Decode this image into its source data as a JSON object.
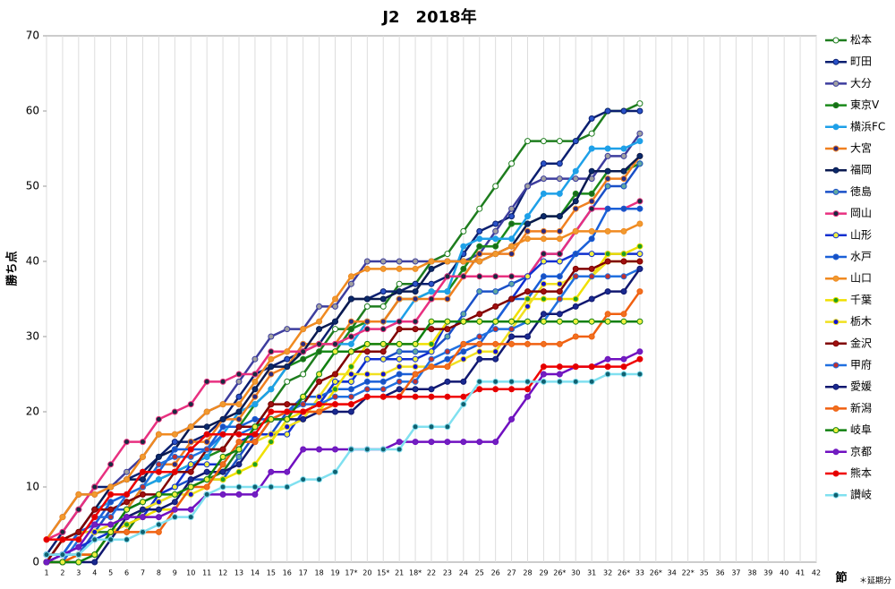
{
  "chart_data": {
    "type": "line",
    "title": "J2　2018年",
    "y_label": "勝ち点",
    "x_label": "節",
    "note": "＊延期分",
    "categories": [
      "1",
      "2",
      "3",
      "4",
      "5",
      "6",
      "7",
      "8",
      "9",
      "10",
      "11",
      "12",
      "13",
      "14",
      "15",
      "16",
      "17",
      "18",
      "19",
      "17*",
      "20",
      "15*",
      "21",
      "18*",
      "22",
      "23",
      "24",
      "25",
      "26",
      "27",
      "28",
      "29",
      "26*",
      "30",
      "31",
      "32",
      "26*",
      "33",
      "26*",
      "34",
      "22*",
      "35",
      "36",
      "37",
      "38",
      "39",
      "40",
      "41",
      "42"
    ],
    "ylim": [
      0,
      70
    ],
    "yticks": [
      0,
      10,
      20,
      30,
      40,
      50,
      60,
      70
    ],
    "grid": true,
    "series": [
      {
        "name": "松本",
        "color": "#1e7d1e",
        "marker": "#ffffff",
        "values": [
          1,
          1,
          4,
          4,
          4,
          4,
          7,
          8,
          9,
          10,
          11,
          12,
          15,
          18,
          21,
          24,
          25,
          28,
          31,
          31,
          34,
          34,
          37,
          37,
          40,
          41,
          44,
          47,
          50,
          53,
          56,
          56,
          56,
          56,
          57,
          60,
          60,
          61,
          null,
          null,
          null,
          null,
          null,
          null,
          null,
          null,
          null,
          null,
          null
        ]
      },
      {
        "name": "町田",
        "color": "#0a1f70",
        "marker": "#2a52c8",
        "values": [
          1,
          4,
          7,
          10,
          10,
          11,
          12,
          14,
          16,
          16,
          17,
          19,
          22,
          25,
          26,
          27,
          28,
          29,
          32,
          35,
          35,
          36,
          36,
          37,
          37,
          38,
          41,
          44,
          45,
          46,
          50,
          53,
          53,
          56,
          59,
          60,
          60,
          60,
          null,
          null,
          null,
          null,
          null,
          null,
          null,
          null,
          null,
          null,
          null
        ]
      },
      {
        "name": "大分",
        "color": "#3d3d9e",
        "marker": "#a0a0a0",
        "values": [
          3,
          6,
          9,
          9,
          10,
          12,
          14,
          17,
          17,
          18,
          20,
          21,
          24,
          27,
          30,
          31,
          31,
          34,
          34,
          37,
          40,
          40,
          40,
          40,
          40,
          40,
          40,
          41,
          44,
          47,
          50,
          51,
          51,
          51,
          51,
          54,
          54,
          57,
          null,
          null,
          null,
          null,
          null,
          null,
          null,
          null,
          null,
          null,
          null
        ]
      },
      {
        "name": "東京V",
        "color": "#1a8a1a",
        "marker": "#1a6a1a",
        "values": [
          0,
          1,
          1,
          1,
          4,
          7,
          10,
          11,
          12,
          13,
          14,
          15,
          18,
          21,
          23,
          26,
          27,
          28,
          28,
          31,
          32,
          32,
          35,
          35,
          36,
          36,
          39,
          42,
          42,
          45,
          45,
          46,
          46,
          49,
          49,
          52,
          52,
          53,
          null,
          null,
          null,
          null,
          null,
          null,
          null,
          null,
          null,
          null,
          null
        ]
      },
      {
        "name": "横浜FC",
        "color": "#1ea0e8",
        "marker": "#1ea0e8",
        "values": [
          0,
          1,
          4,
          7,
          8,
          9,
          10,
          11,
          12,
          13,
          14,
          17,
          20,
          21,
          23,
          26,
          29,
          29,
          29,
          29,
          32,
          32,
          32,
          35,
          36,
          36,
          42,
          43,
          43,
          43,
          46,
          49,
          49,
          52,
          55,
          55,
          55,
          56,
          null,
          null,
          null,
          null,
          null,
          null,
          null,
          null,
          null,
          null,
          null
        ]
      },
      {
        "name": "大宮",
        "color": "#f08020",
        "marker": "#2a2a80",
        "values": [
          0,
          0,
          1,
          4,
          7,
          7,
          10,
          13,
          13,
          16,
          16,
          19,
          19,
          22,
          25,
          26,
          29,
          29,
          29,
          32,
          32,
          32,
          35,
          35,
          35,
          35,
          38,
          41,
          41,
          41,
          44,
          44,
          44,
          47,
          48,
          51,
          51,
          54,
          null,
          null,
          null,
          null,
          null,
          null,
          null,
          null,
          null,
          null,
          null
        ]
      },
      {
        "name": "福岡",
        "color": "#0a1a50",
        "marker": "#0a2a6a",
        "values": [
          0,
          3,
          4,
          7,
          10,
          11,
          11,
          14,
          15,
          18,
          18,
          19,
          20,
          23,
          26,
          26,
          28,
          31,
          32,
          35,
          35,
          35,
          36,
          36,
          39,
          40,
          40,
          40,
          41,
          42,
          45,
          46,
          46,
          48,
          52,
          52,
          52,
          54,
          null,
          null,
          null,
          null,
          null,
          null,
          null,
          null,
          null,
          null,
          null
        ]
      },
      {
        "name": "徳島",
        "color": "#1a50c8",
        "marker": "#60a8a0",
        "values": [
          1,
          1,
          1,
          4,
          7,
          7,
          8,
          9,
          10,
          11,
          11,
          11,
          14,
          17,
          17,
          20,
          20,
          21,
          24,
          24,
          27,
          27,
          28,
          28,
          28,
          30,
          33,
          36,
          36,
          37,
          38,
          41,
          41,
          44,
          47,
          50,
          50,
          53,
          null,
          null,
          null,
          null,
          null,
          null,
          null,
          null,
          null,
          null,
          null
        ]
      },
      {
        "name": "岡山",
        "color": "#e83080",
        "marker": "#1a2a40",
        "values": [
          3,
          4,
          7,
          10,
          13,
          16,
          16,
          19,
          20,
          21,
          24,
          24,
          25,
          25,
          28,
          28,
          28,
          29,
          29,
          30,
          31,
          31,
          32,
          32,
          35,
          38,
          38,
          38,
          38,
          38,
          38,
          41,
          41,
          44,
          47,
          47,
          47,
          48,
          null,
          null,
          null,
          null,
          null,
          null,
          null,
          null,
          null,
          null,
          null
        ]
      },
      {
        "name": "山形",
        "color": "#1030d0",
        "marker": "#f0f040",
        "values": [
          0,
          1,
          2,
          3,
          4,
          5,
          6,
          9,
          10,
          13,
          13,
          13,
          16,
          17,
          17,
          17,
          20,
          21,
          24,
          24,
          27,
          27,
          27,
          27,
          28,
          32,
          32,
          32,
          32,
          35,
          38,
          40,
          40,
          41,
          41,
          41,
          41,
          41,
          null,
          null,
          null,
          null,
          null,
          null,
          null,
          null,
          null,
          null,
          null
        ]
      },
      {
        "name": "水戸",
        "color": "#1a60d8",
        "marker": "#1a50c0",
        "values": [
          1,
          1,
          4,
          5,
          8,
          9,
          12,
          12,
          15,
          15,
          15,
          18,
          18,
          19,
          19,
          20,
          22,
          22,
          23,
          23,
          24,
          24,
          25,
          25,
          26,
          27,
          28,
          29,
          32,
          35,
          35,
          38,
          38,
          41,
          43,
          47,
          47,
          47,
          null,
          null,
          null,
          null,
          null,
          null,
          null,
          null,
          null,
          null,
          null
        ]
      },
      {
        "name": "山口",
        "color": "#f08a20",
        "marker": "#f09a30",
        "values": [
          3,
          6,
          9,
          9,
          10,
          11,
          14,
          17,
          17,
          18,
          20,
          21,
          21,
          24,
          27,
          28,
          31,
          32,
          35,
          38,
          39,
          39,
          39,
          39,
          40,
          40,
          40,
          40,
          41,
          42,
          43,
          43,
          43,
          44,
          44,
          44,
          44,
          45,
          null,
          null,
          null,
          null,
          null,
          null,
          null,
          null,
          null,
          null,
          null
        ]
      },
      {
        "name": "千葉",
        "color": "#f0e000",
        "marker": "#20a020",
        "values": [
          0,
          0,
          1,
          1,
          4,
          5,
          6,
          7,
          7,
          10,
          11,
          11,
          12,
          13,
          16,
          19,
          20,
          20,
          23,
          26,
          29,
          29,
          29,
          29,
          29,
          32,
          32,
          32,
          32,
          32,
          35,
          35,
          35,
          35,
          38,
          41,
          41,
          42,
          null,
          null,
          null,
          null,
          null,
          null,
          null,
          null,
          null,
          null,
          null
        ]
      },
      {
        "name": "栃木",
        "color": "#f0e020",
        "marker": "#1010d0",
        "values": [
          0,
          3,
          4,
          4,
          5,
          6,
          7,
          8,
          9,
          9,
          10,
          13,
          16,
          16,
          17,
          18,
          19,
          22,
          25,
          25,
          25,
          25,
          26,
          26,
          26,
          26,
          27,
          28,
          28,
          31,
          34,
          37,
          37,
          38,
          38,
          40,
          40,
          40,
          null,
          null,
          null,
          null,
          null,
          null,
          null,
          null,
          null,
          null,
          null
        ]
      },
      {
        "name": "金沢",
        "color": "#800000",
        "marker": "#a01010",
        "values": [
          0,
          3,
          4,
          7,
          7,
          8,
          9,
          9,
          12,
          12,
          15,
          15,
          18,
          18,
          21,
          21,
          21,
          24,
          25,
          28,
          28,
          28,
          31,
          31,
          31,
          31,
          32,
          33,
          34,
          35,
          36,
          36,
          36,
          39,
          39,
          40,
          40,
          40,
          null,
          null,
          null,
          null,
          null,
          null,
          null,
          null,
          null,
          null,
          null
        ]
      },
      {
        "name": "甲府",
        "color": "#2070e0",
        "marker": "#c03030",
        "values": [
          0,
          0,
          3,
          6,
          6,
          9,
          10,
          13,
          14,
          14,
          15,
          17,
          17,
          18,
          19,
          20,
          21,
          21,
          22,
          22,
          23,
          23,
          24,
          24,
          27,
          28,
          29,
          30,
          31,
          31,
          32,
          32,
          35,
          38,
          38,
          38,
          38,
          39,
          null,
          null,
          null,
          null,
          null,
          null,
          null,
          null,
          null,
          null,
          null
        ]
      },
      {
        "name": "愛媛",
        "color": "#101870",
        "marker": "#1a2a90",
        "values": [
          0,
          0,
          0,
          0,
          3,
          6,
          7,
          7,
          8,
          11,
          12,
          12,
          13,
          16,
          19,
          19,
          19,
          20,
          20,
          20,
          22,
          22,
          23,
          23,
          23,
          24,
          24,
          27,
          27,
          30,
          30,
          33,
          33,
          34,
          35,
          36,
          36,
          39,
          null,
          null,
          null,
          null,
          null,
          null,
          null,
          null,
          null,
          null,
          null
        ]
      },
      {
        "name": "新潟",
        "color": "#f06010",
        "marker": "#f07020",
        "values": [
          0,
          0,
          1,
          1,
          4,
          4,
          4,
          4,
          7,
          10,
          10,
          13,
          16,
          16,
          19,
          20,
          20,
          20,
          21,
          21,
          22,
          22,
          22,
          25,
          26,
          26,
          29,
          29,
          29,
          29,
          29,
          29,
          29,
          30,
          30,
          33,
          33,
          36,
          null,
          null,
          null,
          null,
          null,
          null,
          null,
          null,
          null,
          null,
          null
        ]
      },
      {
        "name": "岐阜",
        "color": "#108010",
        "marker": "#f0f040",
        "values": [
          0,
          0,
          0,
          1,
          4,
          7,
          8,
          9,
          9,
          10,
          11,
          14,
          15,
          18,
          19,
          19,
          22,
          25,
          28,
          28,
          29,
          29,
          29,
          29,
          32,
          32,
          32,
          32,
          32,
          32,
          32,
          32,
          32,
          32,
          32,
          32,
          32,
          32,
          null,
          null,
          null,
          null,
          null,
          null,
          null,
          null,
          null,
          null,
          null
        ]
      },
      {
        "name": "京都",
        "color": "#7010c0",
        "marker": "#7020c0",
        "values": [
          0,
          1,
          2,
          5,
          5,
          6,
          6,
          6,
          7,
          7,
          9,
          9,
          9,
          9,
          12,
          12,
          15,
          15,
          15,
          15,
          15,
          15,
          16,
          16,
          16,
          16,
          16,
          16,
          16,
          19,
          22,
          25,
          25,
          26,
          26,
          27,
          27,
          28,
          null,
          null,
          null,
          null,
          null,
          null,
          null,
          null,
          null,
          null,
          null
        ]
      },
      {
        "name": "熊本",
        "color": "#f00000",
        "marker": "#e00000",
        "values": [
          3,
          3,
          3,
          6,
          9,
          9,
          12,
          12,
          12,
          15,
          17,
          17,
          17,
          17,
          20,
          20,
          20,
          21,
          21,
          21,
          22,
          22,
          22,
          22,
          22,
          22,
          22,
          23,
          23,
          23,
          23,
          26,
          26,
          26,
          26,
          26,
          26,
          27,
          null,
          null,
          null,
          null,
          null,
          null,
          null,
          null,
          null,
          null,
          null
        ]
      },
      {
        "name": "讃岐",
        "color": "#80e0f0",
        "marker": "#106070",
        "values": [
          1,
          1,
          1,
          3,
          3,
          3,
          4,
          5,
          6,
          6,
          9,
          10,
          10,
          10,
          10,
          10,
          11,
          11,
          12,
          15,
          15,
          15,
          15,
          18,
          18,
          18,
          21,
          24,
          24,
          24,
          24,
          24,
          24,
          24,
          24,
          25,
          25,
          25,
          null,
          null,
          null,
          null,
          null,
          null,
          null,
          null,
          null,
          null,
          null
        ]
      }
    ]
  }
}
